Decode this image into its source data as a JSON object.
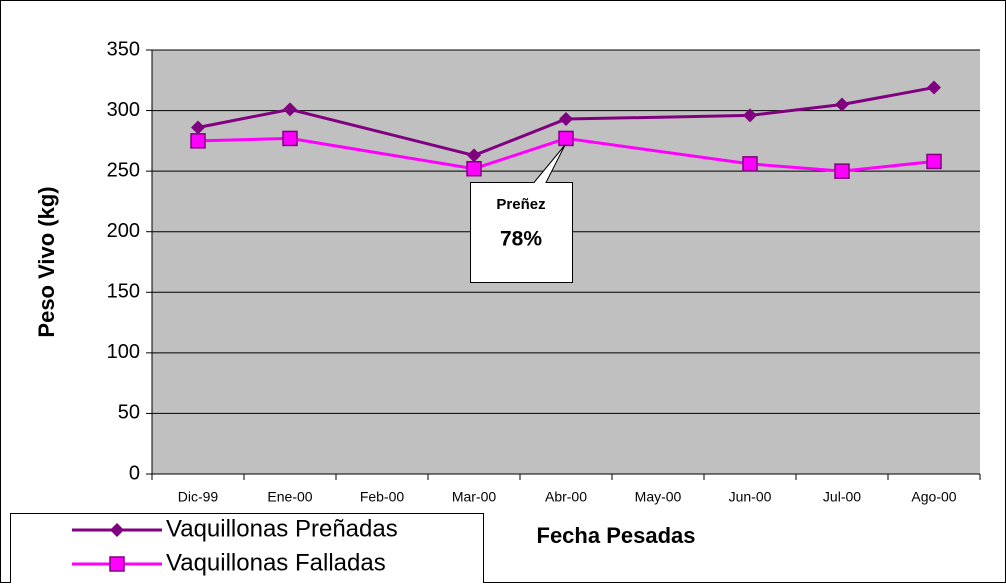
{
  "chart_data": {
    "type": "line",
    "y_label": "Peso Vivo (kg)",
    "x_label": "Fecha Pesadas",
    "categories": [
      "Dic-99",
      "Ene-00",
      "Feb-00",
      "Mar-00",
      "Abr-00",
      "May-00",
      "Jun-00",
      "Jul-00",
      "Ago-00"
    ],
    "ylim": [
      0,
      350
    ],
    "yticks": [
      0,
      50,
      100,
      150,
      200,
      250,
      300,
      350
    ],
    "grid": true,
    "series": [
      {
        "name": "Vaquillonas Preñadas",
        "color": "#800080",
        "marker": "diamond",
        "x": [
          "Dic-99",
          "Ene-00",
          "Mar-00",
          "Abr-00",
          "Jun-00",
          "Jul-00",
          "Ago-00"
        ],
        "values": [
          286,
          301,
          263,
          293,
          296,
          305,
          319
        ]
      },
      {
        "name": "Vaquillonas Falladas",
        "color": "#ff00ff",
        "marker": "square",
        "x": [
          "Dic-99",
          "Ene-00",
          "Mar-00",
          "Abr-00",
          "Jun-00",
          "Jul-00",
          "Ago-00"
        ],
        "values": [
          275,
          277,
          252,
          277,
          256,
          250,
          258
        ]
      }
    ],
    "annotations": [
      {
        "title": "Preñez",
        "text": "78%"
      }
    ]
  }
}
